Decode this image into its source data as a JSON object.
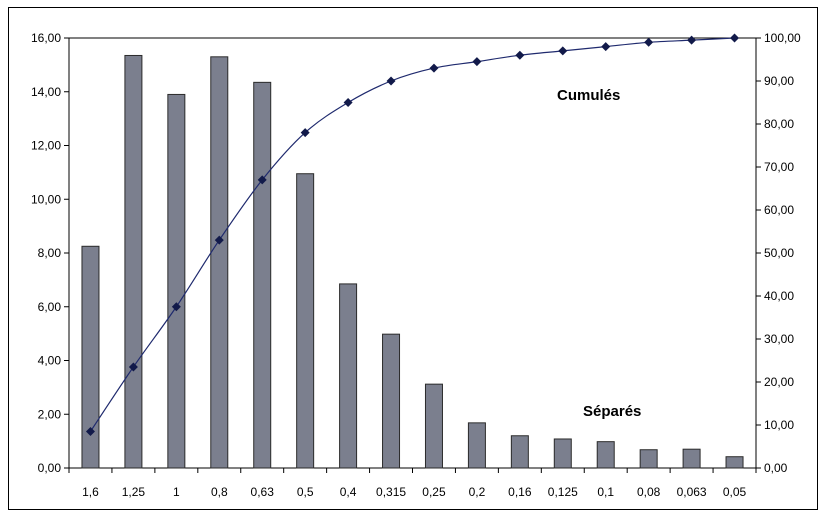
{
  "chart_data": {
    "type": "bar",
    "categories": [
      "1,6",
      "1,25",
      "1",
      "0,8",
      "0,63",
      "0,5",
      "0,4",
      "0,315",
      "0,25",
      "0,2",
      "0,16",
      "0,125",
      "0,1",
      "0,08",
      "0,063",
      "0,05"
    ],
    "series": [
      {
        "name": "Séparés",
        "type": "bar",
        "axis": "left",
        "values": [
          8.25,
          15.35,
          13.9,
          15.3,
          14.35,
          10.95,
          6.85,
          4.98,
          3.12,
          1.68,
          1.2,
          1.08,
          0.98,
          0.68,
          0.7,
          0.42
        ],
        "color": "#7b7f8e"
      },
      {
        "name": "Cumulés",
        "type": "line",
        "axis": "right",
        "values": [
          8.5,
          23.5,
          37.5,
          53.0,
          67.0,
          78.0,
          85.0,
          90.0,
          93.0,
          94.5,
          96.0,
          97.0,
          98.0,
          99.0,
          99.5,
          100.0
        ],
        "color": "#1f2a6e"
      }
    ],
    "ylim_left": [
      0,
      16
    ],
    "ylim_right": [
      0,
      100
    ],
    "yticks_left": [
      "0,00",
      "2,00",
      "4,00",
      "6,00",
      "8,00",
      "10,00",
      "12,00",
      "14,00",
      "16,00"
    ],
    "yticks_right": [
      "0,00",
      "10,00",
      "20,00",
      "30,00",
      "40,00",
      "50,00",
      "60,00",
      "70,00",
      "80,00",
      "90,00",
      "100,00"
    ],
    "annotations": {
      "cumul_label": "Cumulés",
      "separe_label": "Séparés"
    },
    "grid": false,
    "legend": "none"
  }
}
